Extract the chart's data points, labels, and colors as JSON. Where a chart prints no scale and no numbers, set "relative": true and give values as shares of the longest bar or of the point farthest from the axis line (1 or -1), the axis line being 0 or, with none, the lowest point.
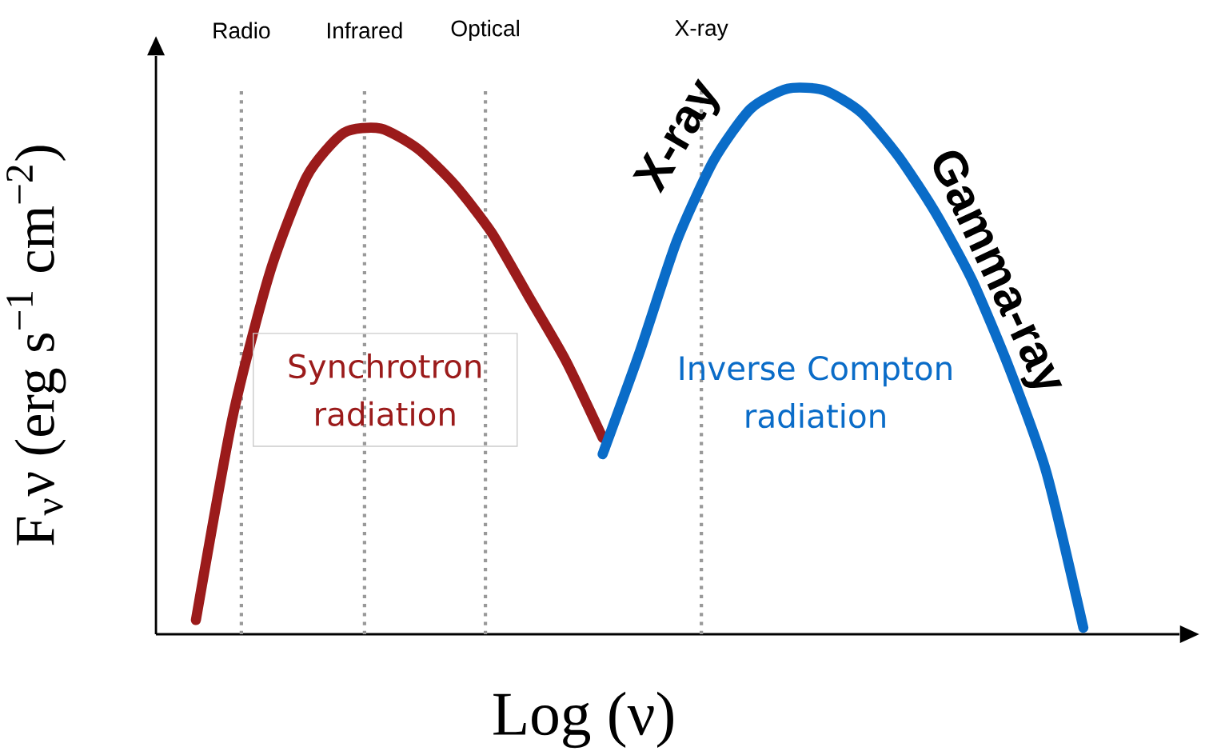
{
  "chart_data": {
    "type": "line",
    "relative": true,
    "xlabel": "Log (ν)",
    "ylabel": "F$_{ν}$ν (erg s$^{−1}$ cm$^{−2}$)",
    "categories": [
      null,
      null,
      null,
      null,
      null,
      null,
      null,
      null,
      null,
      null,
      null,
      null,
      null,
      null,
      null,
      null,
      null,
      null,
      null,
      null,
      null,
      null,
      null,
      null,
      null
    ],
    "series": [
      {
        "color": "#9b1b1b",
        "values": [
          0.026,
          0.4,
          0.663,
          0.839,
          0.919,
          0.927,
          0.89,
          0.824,
          0.736,
          0.619,
          0.502,
          0.36,
          null,
          null,
          null,
          null,
          null,
          null,
          null,
          null,
          null,
          null,
          null,
          null,
          null
        ]
      },
      {
        "color": "#0a6cc8",
        "values": [
          null,
          null,
          null,
          null,
          null,
          null,
          null,
          null,
          null,
          null,
          null,
          0.33,
          0.517,
          0.72,
          0.868,
          0.963,
          1.0,
          0.997,
          0.956,
          0.876,
          0.773,
          0.648,
          0.487,
          0.297,
          0.012
        ]
      }
    ],
    "annotations": [
      "Radio",
      "Infrared",
      "Optical",
      "X-ray",
      "X-ray",
      "Gamma-ray",
      "Synchrotron radiation",
      "Inverse Compton radiation"
    ],
    "marker": "none",
    "line_style": "solid"
  }
}
